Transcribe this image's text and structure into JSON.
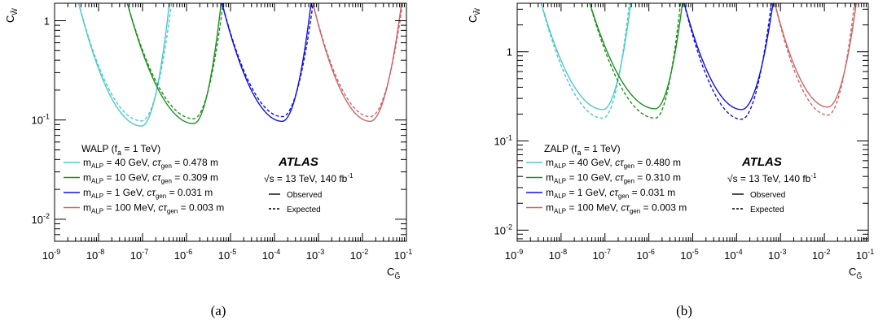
{
  "chart_data": [
    {
      "type": "line",
      "panel_label": "(a)",
      "xlabel": "C_G̃",
      "ylabel": "C_W̃",
      "xlim": [
        1e-09,
        0.1
      ],
      "ylim": [
        0.006,
        1.5
      ],
      "x_scale": "log",
      "y_scale": "log",
      "x_ticks": [
        "10^-9",
        "10^-8",
        "10^-7",
        "10^-6",
        "10^-5",
        "10^-4",
        "10^-3",
        "10^-2",
        "10^-1"
      ],
      "y_ticks": [
        "10^-2",
        "10^-1",
        "1"
      ],
      "legend": {
        "title": "WALP (f_a = 1 TeV)",
        "observed_label": "Observed",
        "expected_label": "Expected"
      },
      "atlas": {
        "label": "ATLAS",
        "energy": "√s = 13 TeV, 140 fb^-1"
      },
      "series": [
        {
          "name": "m_ALP = 40 GeV, cτ_gen = 0.478 m",
          "mass": "40 GeV",
          "ctau": "0.478 m",
          "color": "#4ec9c9",
          "observed": {
            "x_min": 9.5e-08,
            "y_min": 0.087,
            "x_left_top": 3.3e-09,
            "x_right_top": 4.2e-07
          },
          "expected": {
            "x_min": 9.5e-08,
            "y_min": 0.098,
            "x_left_top": 3.3e-09,
            "x_right_top": 4.7e-07
          }
        },
        {
          "name": "m_ALP = 10 GeV, cτ_gen = 0.309 m",
          "mass": "10 GeV",
          "ctau": "0.309 m",
          "color": "#1f8f1f",
          "observed": {
            "x_min": 1.45e-06,
            "y_min": 0.092,
            "x_left_top": 4.2e-08,
            "x_right_top": 6.3e-06
          },
          "expected": {
            "x_min": 1.45e-06,
            "y_min": 0.103,
            "x_left_top": 4.2e-08,
            "x_right_top": 7e-06
          }
        },
        {
          "name": "m_ALP = 1 GeV, cτ_gen = 0.031 m",
          "mass": "1 GeV",
          "ctau": "0.031 m",
          "color": "#1111dd",
          "observed": {
            "x_min": 0.00015,
            "y_min": 0.097,
            "x_left_top": 6e-06,
            "x_right_top": 0.0007
          },
          "expected": {
            "x_min": 0.00015,
            "y_min": 0.108,
            "x_left_top": 6e-06,
            "x_right_top": 0.00078
          }
        },
        {
          "name": "m_ALP = 100 MeV, cτ_gen = 0.003 m",
          "mass": "100 MeV",
          "ctau": "0.003 m",
          "color": "#cc6666",
          "observed": {
            "x_min": 0.015,
            "y_min": 0.097,
            "x_left_top": 0.0007,
            "x_right_top": 0.08
          },
          "expected": {
            "x_min": 0.015,
            "y_min": 0.108,
            "x_left_top": 0.0007,
            "x_right_top": 0.085
          }
        }
      ]
    },
    {
      "type": "line",
      "panel_label": "(b)",
      "xlabel": "C_G̃",
      "ylabel": "C_W̃",
      "xlim": [
        1e-09,
        0.1
      ],
      "ylim": [
        0.0075,
        3.5
      ],
      "x_scale": "log",
      "y_scale": "log",
      "x_ticks": [
        "10^-9",
        "10^-8",
        "10^-7",
        "10^-6",
        "10^-5",
        "10^-4",
        "10^-3",
        "10^-2",
        "10^-1"
      ],
      "y_ticks": [
        "10^-2",
        "10^-1",
        "1"
      ],
      "legend": {
        "title": "ZALP (f_a = 1 TeV)",
        "observed_label": "Observed",
        "expected_label": "Expected"
      },
      "atlas": {
        "label": "ATLAS",
        "energy": "√s = 13 TeV, 140 fb^-1"
      },
      "series": [
        {
          "name": "m_ALP = 40 GeV, cτ_gen = 0.480 m",
          "mass": "40 GeV",
          "ctau": "0.480 m",
          "color": "#4ec9c9",
          "observed": {
            "x_min": 9e-08,
            "y_min": 0.225,
            "x_left_top": 3.3e-09,
            "x_right_top": 4e-07
          },
          "expected": {
            "x_min": 9e-08,
            "y_min": 0.18,
            "x_left_top": 3.3e-09,
            "x_right_top": 3.7e-07
          }
        },
        {
          "name": "m_ALP = 10 GeV, cτ_gen = 0.310 m",
          "mass": "10 GeV",
          "ctau": "0.310 m",
          "color": "#1f8f1f",
          "observed": {
            "x_min": 1.4e-06,
            "y_min": 0.23,
            "x_left_top": 4.2e-08,
            "x_right_top": 6e-06
          },
          "expected": {
            "x_min": 1.4e-06,
            "y_min": 0.18,
            "x_left_top": 4.2e-08,
            "x_right_top": 5.4e-06
          }
        },
        {
          "name": "m_ALP = 1 GeV, cτ_gen = 0.031 m",
          "mass": "1 GeV",
          "ctau": "0.031 m",
          "color": "#1111dd",
          "observed": {
            "x_min": 0.00013,
            "y_min": 0.225,
            "x_left_top": 6e-06,
            "x_right_top": 0.0007
          },
          "expected": {
            "x_min": 0.00013,
            "y_min": 0.175,
            "x_left_top": 6e-06,
            "x_right_top": 0.00064
          }
        },
        {
          "name": "m_ALP = 100 MeV, cτ_gen = 0.003 m",
          "mass": "100 MeV",
          "ctau": "0.003 m",
          "color": "#cc6666",
          "observed": {
            "x_min": 0.012,
            "y_min": 0.24,
            "x_left_top": 0.0007,
            "x_right_top": 0.055
          },
          "expected": {
            "x_min": 0.012,
            "y_min": 0.195,
            "x_left_top": 0.0007,
            "x_right_top": 0.05
          }
        }
      ]
    }
  ]
}
